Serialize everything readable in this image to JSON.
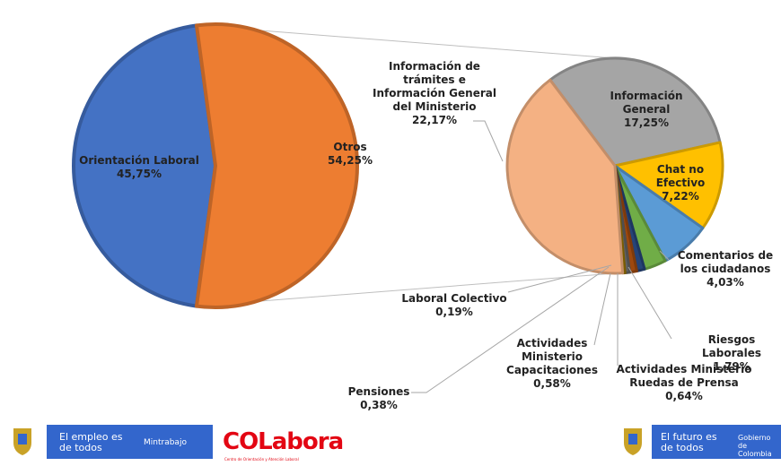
{
  "chart_data": [
    {
      "type": "pie",
      "categories": [
        "Orientación Laboral",
        "Otros"
      ],
      "values": [
        45.75,
        54.25
      ],
      "value_labels": [
        "45,75%",
        "54,25%"
      ],
      "colors": [
        "#4472c4",
        "#ed7d31"
      ]
    },
    {
      "type": "pie",
      "categories": [
        "Información General",
        "Chat no Efectivo",
        "Comentarios de los ciudadanos",
        "Riesgos Laborales",
        "Actividades Ministerio Ruedas de Prensa",
        "Actividades Ministerio Capacitaciones",
        "Pensiones",
        "Laboral Colectivo",
        "Información de trámites e Información General del Ministerio"
      ],
      "values": [
        17.25,
        7.22,
        4.03,
        1.79,
        0.64,
        0.58,
        0.38,
        0.19,
        22.17
      ],
      "value_labels": [
        "17,25%",
        "7,22%",
        "4,03%",
        "1,79%",
        "0,64%",
        "0,58%",
        "0,38%",
        "0,19%",
        "22,17%"
      ],
      "colors": [
        "#a5a5a5",
        "#ffc000",
        "#5b9bd5",
        "#70ad47",
        "#264478",
        "#9e480e",
        "#636363",
        "#997300",
        "#f4b183"
      ]
    }
  ],
  "footer": {
    "left_slogan": "El empleo es de todos",
    "left_ministry": "Mintrabajo",
    "logo": "COLabora",
    "logo_sub": "Centro de Orientación y Atención Laboral",
    "right_slogan": "El futuro es de todos",
    "right_gov": "Gobierno de Colombia"
  }
}
